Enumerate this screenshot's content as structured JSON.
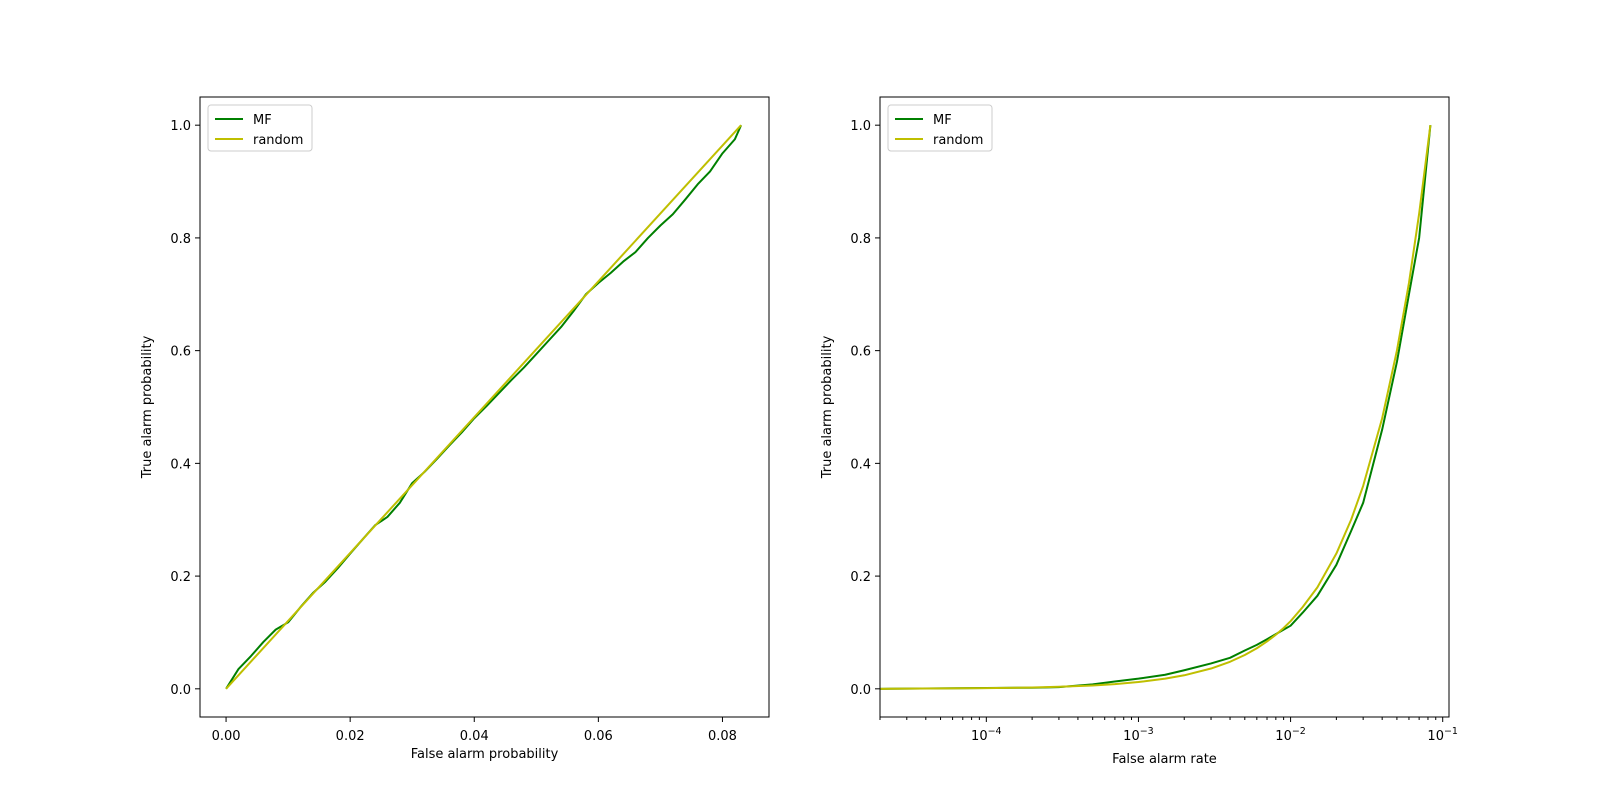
{
  "chart_data": [
    {
      "type": "line",
      "xlabel": "False alarm probability",
      "ylabel": "True alarm probability",
      "xscale": "linear",
      "xlim": [
        -0.0042,
        0.0875
      ],
      "ylim": [
        -0.05,
        1.05
      ],
      "xticks": [
        0.0,
        0.02,
        0.04,
        0.06,
        0.08
      ],
      "xtick_labels": [
        "0.00",
        "0.02",
        "0.04",
        "0.06",
        "0.08"
      ],
      "yticks": [
        0.0,
        0.2,
        0.4,
        0.6,
        0.8,
        1.0
      ],
      "ytick_labels": [
        "0.0",
        "0.2",
        "0.4",
        "0.6",
        "0.8",
        "1.0"
      ],
      "legend": "upper-left",
      "grid": false,
      "series": [
        {
          "name": "MF",
          "color": "#008000",
          "x": [
            0.0,
            0.002,
            0.004,
            0.006,
            0.008,
            0.01,
            0.012,
            0.014,
            0.016,
            0.018,
            0.02,
            0.022,
            0.024,
            0.026,
            0.028,
            0.03,
            0.032,
            0.034,
            0.036,
            0.038,
            0.04,
            0.042,
            0.044,
            0.046,
            0.048,
            0.05,
            0.052,
            0.054,
            0.056,
            0.058,
            0.06,
            0.062,
            0.064,
            0.066,
            0.068,
            0.07,
            0.072,
            0.074,
            0.076,
            0.078,
            0.08,
            0.082,
            0.083
          ],
          "y": [
            0.0,
            0.035,
            0.058,
            0.083,
            0.105,
            0.118,
            0.145,
            0.17,
            0.19,
            0.214,
            0.24,
            0.265,
            0.29,
            0.305,
            0.33,
            0.365,
            0.385,
            0.408,
            0.432,
            0.455,
            0.48,
            0.502,
            0.525,
            0.548,
            0.57,
            0.594,
            0.618,
            0.642,
            0.67,
            0.7,
            0.72,
            0.738,
            0.758,
            0.775,
            0.8,
            0.822,
            0.842,
            0.868,
            0.895,
            0.918,
            0.95,
            0.975,
            1.0
          ]
        },
        {
          "name": "random",
          "color": "#bfbf00",
          "x": [
            0.0,
            0.083
          ],
          "y": [
            0.0,
            1.0
          ]
        }
      ]
    },
    {
      "type": "line",
      "xlabel": "False alarm rate",
      "ylabel": "True alarm probability",
      "xscale": "log",
      "xlim": [
        2e-05,
        0.11
      ],
      "ylim": [
        -0.05,
        1.05
      ],
      "xticks": [
        0.0001,
        0.001,
        0.01,
        0.1
      ],
      "xtick_labels": [
        "10",
        "10",
        "10",
        "10"
      ],
      "xtick_exponents": [
        "−4",
        "−3",
        "−2",
        "−1"
      ],
      "yticks": [
        0.0,
        0.2,
        0.4,
        0.6,
        0.8,
        1.0
      ],
      "ytick_labels": [
        "0.0",
        "0.2",
        "0.4",
        "0.6",
        "0.8",
        "1.0"
      ],
      "legend": "upper-left",
      "grid": false,
      "series": [
        {
          "name": "MF",
          "color": "#008000",
          "x": [
            2e-05,
            0.0001,
            0.0002,
            0.0003,
            0.0005,
            0.0007,
            0.001,
            0.0015,
            0.002,
            0.003,
            0.004,
            0.005,
            0.006,
            0.007,
            0.008,
            0.009,
            0.01,
            0.012,
            0.015,
            0.02,
            0.025,
            0.03,
            0.04,
            0.05,
            0.06,
            0.07,
            0.083
          ],
          "y": [
            0.0,
            0.0015,
            0.002,
            0.003,
            0.008,
            0.013,
            0.018,
            0.025,
            0.033,
            0.045,
            0.055,
            0.068,
            0.078,
            0.088,
            0.097,
            0.105,
            0.112,
            0.135,
            0.165,
            0.22,
            0.28,
            0.33,
            0.46,
            0.58,
            0.7,
            0.8,
            1.0
          ]
        },
        {
          "name": "random",
          "color": "#bfbf00",
          "x": [
            2e-05,
            0.0001,
            0.0002,
            0.0003,
            0.0005,
            0.0007,
            0.001,
            0.0015,
            0.002,
            0.003,
            0.004,
            0.005,
            0.006,
            0.007,
            0.008,
            0.009,
            0.01,
            0.012,
            0.015,
            0.02,
            0.025,
            0.03,
            0.04,
            0.05,
            0.06,
            0.07,
            0.083
          ],
          "y": [
            0.0,
            0.0012,
            0.0024,
            0.0036,
            0.006,
            0.0084,
            0.012,
            0.018,
            0.024,
            0.036,
            0.048,
            0.06,
            0.072,
            0.084,
            0.096,
            0.108,
            0.12,
            0.145,
            0.18,
            0.24,
            0.3,
            0.36,
            0.48,
            0.6,
            0.72,
            0.843,
            1.0
          ]
        }
      ]
    }
  ]
}
